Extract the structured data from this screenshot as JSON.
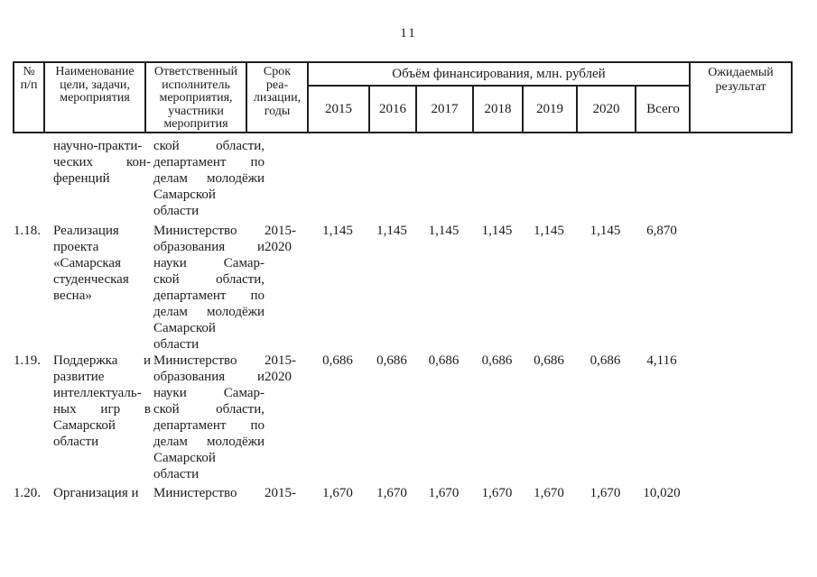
{
  "page_number": "11",
  "table": {
    "header": {
      "num_lines": [
        "№",
        "п/п"
      ],
      "name_lines": [
        "Наименование",
        "цели, задачи,",
        "мероприятия"
      ],
      "resp_lines": [
        "Ответственный",
        "исполнитель",
        "мероприятия,",
        "участники",
        "меропрития"
      ],
      "term_lines": [
        "Срок",
        "реа-",
        "лизации,",
        "годы"
      ],
      "financing_title": "Объём финансирования, млн. рублей",
      "years": [
        "2015",
        "2016",
        "2017",
        "2018",
        "2019",
        "2020",
        "Всего"
      ],
      "result_lines": [
        "Ожидаемый",
        "результат"
      ]
    },
    "rows": [
      {
        "num": "",
        "name_lines": [
          "научно-практи-",
          "ческих кон-",
          "ференций"
        ],
        "resp_lines": [
          "ской области,",
          "департамент по",
          "делам молодёжи",
          "Самарской",
          "области"
        ],
        "term_lines": [],
        "values": [
          "",
          "",
          "",
          "",
          "",
          "",
          ""
        ]
      },
      {
        "num": "1.18.",
        "name_lines": [
          "Реализация",
          "проекта",
          "«Самарская",
          "студенческая",
          "весна»"
        ],
        "resp_lines": [
          "Министерство",
          "образования и",
          "науки Самар-",
          "ской области,",
          "департамент по",
          "делам молодёжи",
          "Самарской",
          "области"
        ],
        "term_lines": [
          "2015-",
          "2020"
        ],
        "values": [
          "1,145",
          "1,145",
          "1,145",
          "1,145",
          "1,145",
          "1,145",
          "6,870"
        ]
      },
      {
        "num": "1.19.",
        "name_lines": [
          "Поддержка и",
          "развитие",
          "интеллектуаль-",
          "ных игр в",
          "Самарской",
          "области"
        ],
        "resp_lines": [
          "Министерство",
          "образования и",
          "науки Самар-",
          "ской области,",
          "департамент по",
          "делам молодёжи",
          "Самарской",
          "области"
        ],
        "term_lines": [
          "2015-",
          "2020"
        ],
        "values": [
          "0,686",
          "0,686",
          "0,686",
          "0,686",
          "0,686",
          "0,686",
          "4,116"
        ]
      },
      {
        "num": "1.20.",
        "name_lines": [
          "Организация и"
        ],
        "resp_lines": [
          "Министерство"
        ],
        "term_lines": [
          "2015-"
        ],
        "values": [
          "1,670",
          "1,670",
          "1,670",
          "1,670",
          "1,670",
          "1,670",
          "10,020"
        ]
      }
    ]
  }
}
